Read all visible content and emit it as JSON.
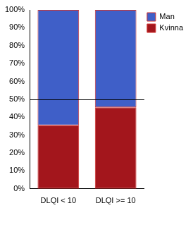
{
  "chart_data": {
    "type": "bar",
    "stacked": true,
    "categories": [
      "DLQI < 10",
      "DLQI >= 10"
    ],
    "series": [
      {
        "name": "Kvinna",
        "color": "#a3161c",
        "values": [
          35.5,
          45.5
        ]
      },
      {
        "name": "Man",
        "color": "#3f5fc8",
        "values": [
          64.5,
          54.5
        ]
      }
    ],
    "ylim": [
      0,
      100
    ],
    "yticks": [
      {
        "value": 0,
        "label": "0%"
      },
      {
        "value": 10,
        "label": "10%"
      },
      {
        "value": 20,
        "label": "20%"
      },
      {
        "value": 30,
        "label": "30%"
      },
      {
        "value": 40,
        "label": "40%"
      },
      {
        "value": 50,
        "label": "50%"
      },
      {
        "value": 60,
        "label": "60%"
      },
      {
        "value": 70,
        "label": "70%"
      },
      {
        "value": 80,
        "label": "80%"
      },
      {
        "value": 90,
        "label": "90%"
      },
      {
        "value": 100,
        "label": "100%"
      }
    ],
    "reference_line": 50,
    "grid": false,
    "legend": "top-right"
  }
}
